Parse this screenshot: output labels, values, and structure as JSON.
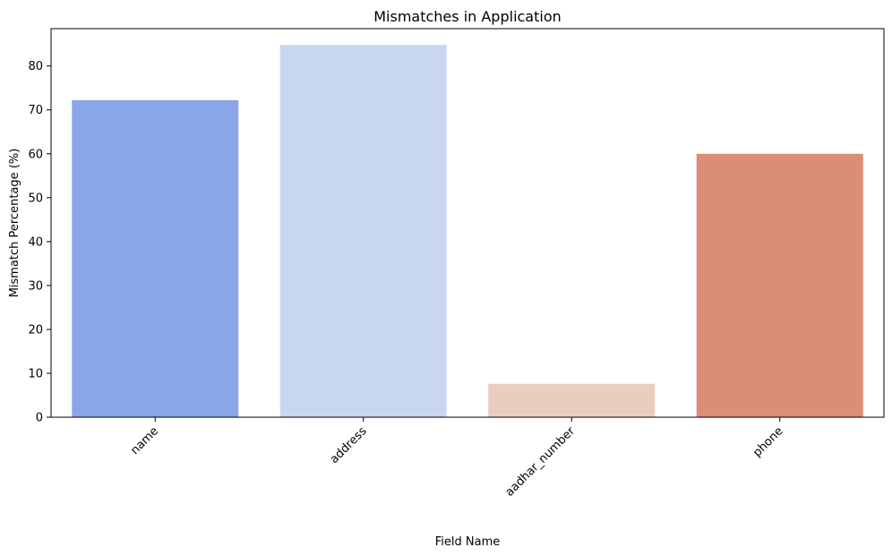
{
  "chart_data": {
    "type": "bar",
    "title": "Mismatches in Application",
    "xlabel": "Field Name",
    "ylabel": "Mismatch Percentage (%)",
    "categories": [
      "name",
      "address",
      "aadhar_number",
      "phone"
    ],
    "values": [
      72.2,
      84.8,
      7.6,
      60.0
    ],
    "colors": [
      "#89a6e9",
      "#c8d6ef",
      "#e9cdbf",
      "#dc8d76"
    ],
    "ylim": [
      0,
      88.5
    ],
    "yticks": [
      0,
      10,
      20,
      30,
      40,
      50,
      60,
      70,
      80
    ],
    "grid": false,
    "legend": "none"
  }
}
